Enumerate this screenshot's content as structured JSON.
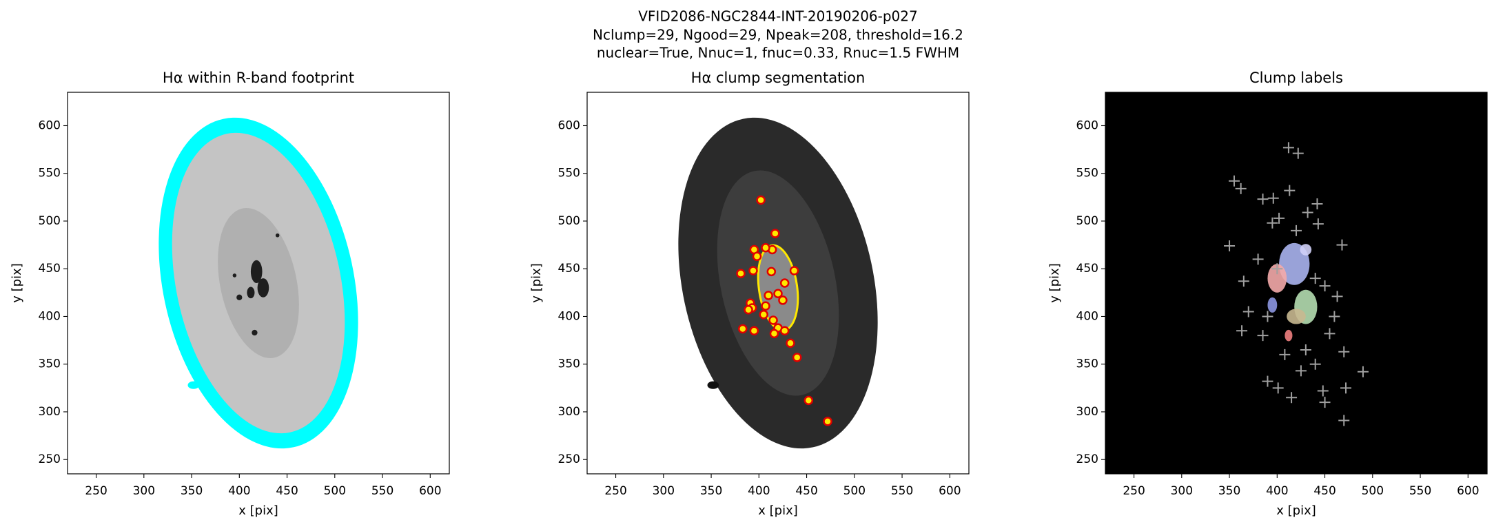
{
  "suptitle": [
    "VFID2086-NGC2844-INT-20190206-p027",
    "Nclump=29, Ngood=29, Npeak=208, threshold=16.2",
    "nuclear=True, Nnuc=1, fnuc=0.33, Rnuc=1.5 FWHM"
  ],
  "chart_data": [
    {
      "type": "image",
      "title": "Hα within R-band footprint",
      "xlabel": "x [pix]",
      "ylabel": "y [pix]",
      "xlim": [
        220,
        620
      ],
      "ylim": [
        235,
        635
      ],
      "xticks": [
        250,
        300,
        350,
        400,
        450,
        500,
        550,
        600
      ],
      "yticks": [
        250,
        300,
        350,
        400,
        450,
        500,
        550,
        600
      ],
      "color": "#00ffff"
    },
    {
      "type": "segmentation",
      "title": "Hα clump segmentation",
      "xlabel": "x [pix]",
      "ylabel": "y [pix]",
      "xlim": [
        220,
        620
      ],
      "ylim": [
        235,
        635
      ],
      "xticks": [
        250,
        300,
        350,
        400,
        450,
        500,
        550,
        600
      ],
      "yticks": [
        250,
        300,
        350,
        400,
        450,
        500,
        550,
        600
      ],
      "color": "#e00000",
      "x": [
        402,
        417,
        414,
        395,
        407,
        398,
        381,
        394,
        413,
        427,
        410,
        420,
        391,
        393,
        389,
        407,
        405,
        425,
        415,
        383,
        395,
        420,
        427,
        416,
        433,
        440,
        452,
        472,
        437
      ],
      "y": [
        522,
        487,
        470,
        470,
        472,
        463,
        445,
        448,
        447,
        435,
        422,
        424,
        414,
        409,
        407,
        411,
        402,
        417,
        396,
        387,
        385,
        388,
        385,
        382,
        372,
        357,
        312,
        290,
        448
      ]
    },
    {
      "type": "labels",
      "title": "Clump labels",
      "xlabel": "x [pix]",
      "ylabel": "y [pix]",
      "xlim": [
        220,
        620
      ],
      "ylim": [
        235,
        635
      ],
      "xticks": [
        250,
        300,
        350,
        400,
        450,
        500,
        550,
        600
      ],
      "yticks": [
        250,
        300,
        350,
        400,
        450,
        500,
        550,
        600
      ],
      "color": "#a0a0a0",
      "x": [
        412,
        422,
        355,
        362,
        396,
        413,
        442,
        468,
        350,
        365,
        385,
        432,
        402,
        395,
        443,
        420,
        380,
        400,
        440,
        450,
        463,
        370,
        390,
        460,
        363,
        385,
        455,
        470,
        390,
        401,
        415,
        440,
        448,
        450,
        470,
        490,
        472,
        430,
        408,
        425
      ],
      "y": [
        577,
        571,
        542,
        534,
        524,
        532,
        518,
        475,
        474,
        437,
        523,
        509,
        503,
        498,
        497,
        490,
        460,
        450,
        440,
        432,
        421,
        405,
        400,
        400,
        385,
        380,
        382,
        363,
        332,
        325,
        315,
        350,
        322,
        310,
        291,
        342,
        325,
        365,
        360,
        343
      ]
    }
  ]
}
